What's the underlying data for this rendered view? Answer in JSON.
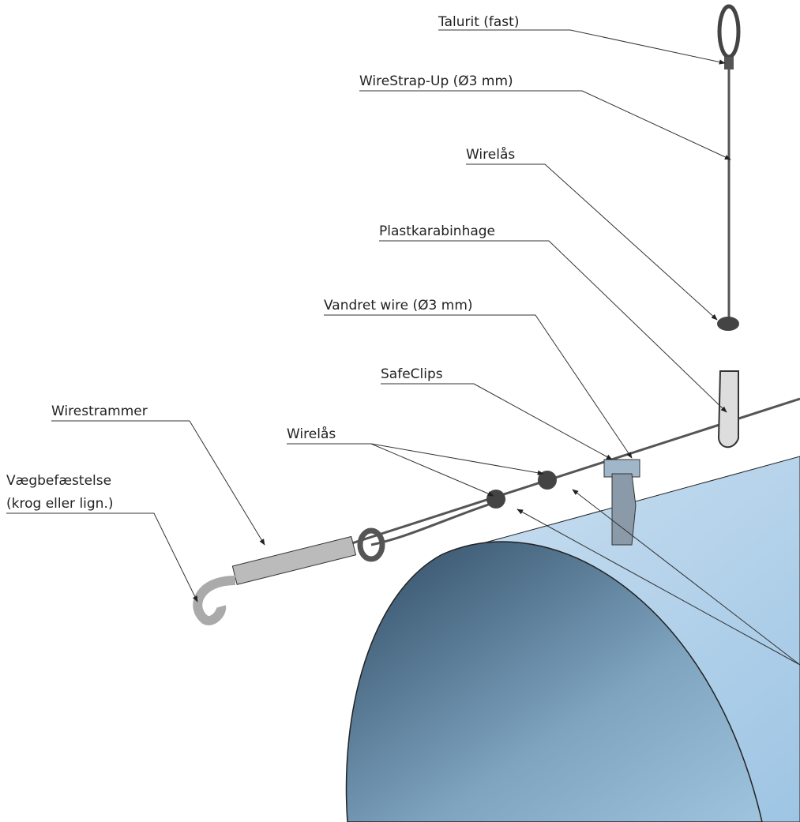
{
  "labels": {
    "talurit": "Talurit (fast)",
    "wirestrap": "WireStrap-Up (Ø3 mm)",
    "wirelaas_top": "Wirelås",
    "plastkarabinhage": "Plastkarabinhage",
    "vandret_wire": "Vandret wire (Ø3 mm)",
    "safeclips": "SafeClips",
    "wirestrammer": "Wirestrammer",
    "wirelaas_bottom": "Wirelås",
    "vaegbefaestelse": [
      "Vægbefæstelse",
      "(krog eller lign.)"
    ]
  }
}
